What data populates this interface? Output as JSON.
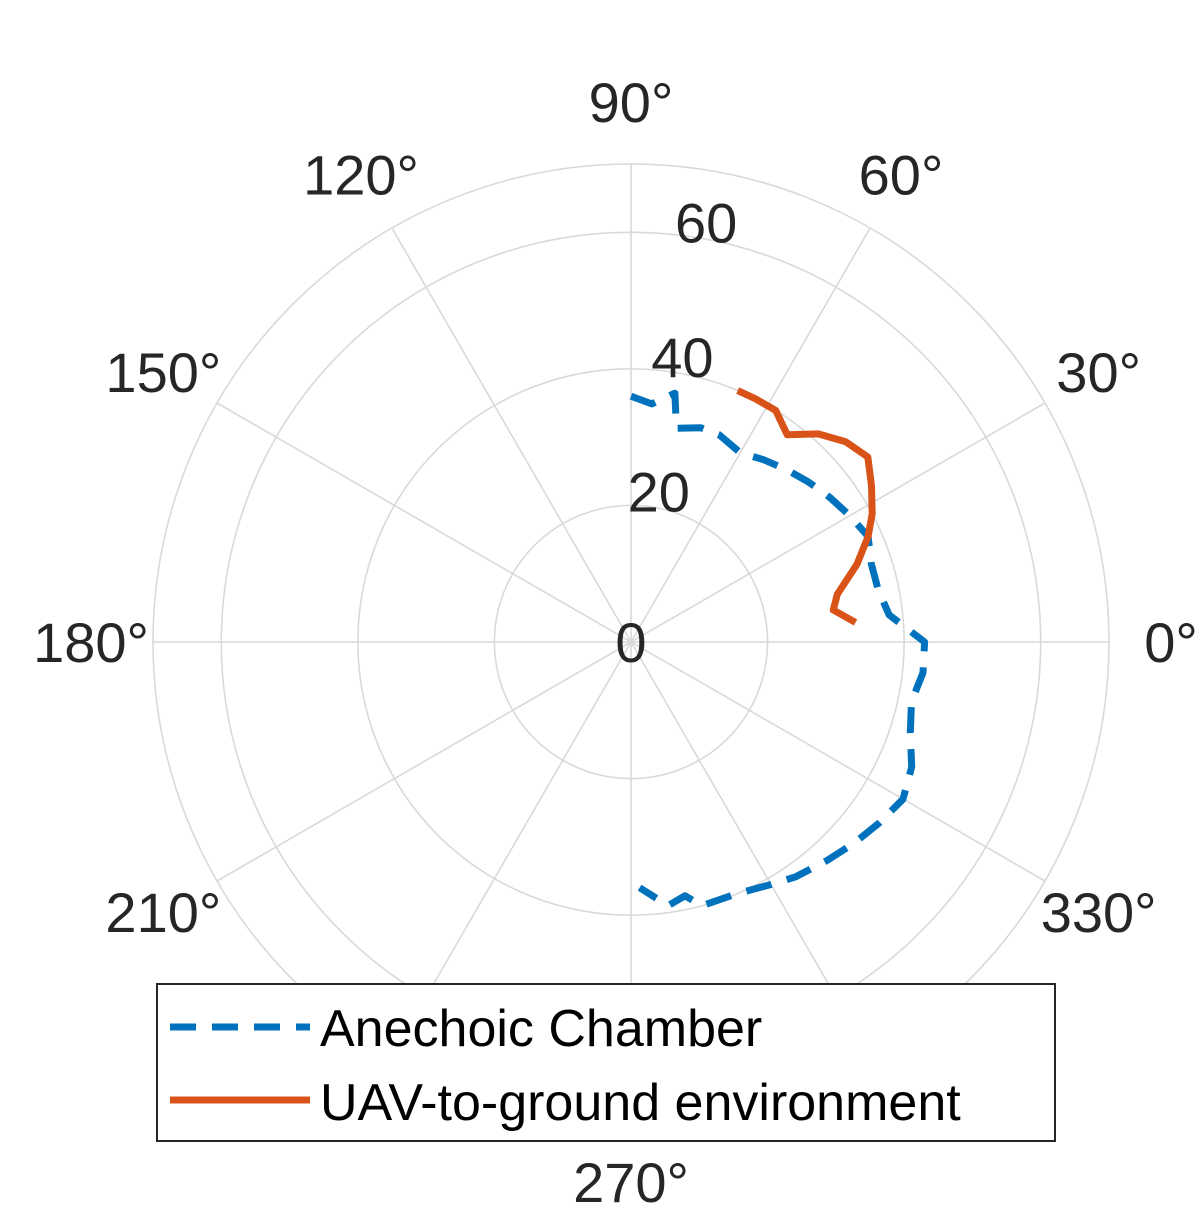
{
  "chart_data": {
    "type": "polar-line",
    "theta_unit": "degrees",
    "theta_ticks": [
      0,
      30,
      60,
      90,
      120,
      150,
      180,
      210,
      240,
      270,
      300,
      330
    ],
    "theta_tick_labels": [
      "0°",
      "30°",
      "60°",
      "90°",
      "120°",
      "150°",
      "180°",
      "210°",
      "",
      "270°",
      "",
      "330°"
    ],
    "r_ticks": [
      0,
      20,
      40,
      60
    ],
    "r_tick_labels": [
      "0",
      "20",
      "40",
      "60"
    ],
    "r_lim": [
      0,
      70
    ],
    "grid": true,
    "legend_position": "bottom",
    "series": [
      {
        "name": "Anechoic Chamber",
        "color": "#0072BD",
        "line_style": "dashed",
        "points": [
          {
            "theta": 90,
            "r": 36
          },
          {
            "theta": 85,
            "r": 35
          },
          {
            "theta": 80,
            "r": 37
          },
          {
            "theta": 78,
            "r": 32
          },
          {
            "theta": 72,
            "r": 33
          },
          {
            "theta": 67,
            "r": 33
          },
          {
            "theta": 60,
            "r": 32
          },
          {
            "theta": 54,
            "r": 33
          },
          {
            "theta": 48,
            "r": 34
          },
          {
            "theta": 42,
            "r": 35
          },
          {
            "theta": 36,
            "r": 36
          },
          {
            "theta": 30,
            "r": 37
          },
          {
            "theta": 24,
            "r": 38
          },
          {
            "theta": 18,
            "r": 37
          },
          {
            "theta": 12,
            "r": 37
          },
          {
            "theta": 6,
            "r": 38
          },
          {
            "theta": 0,
            "r": 43
          },
          {
            "theta": -6,
            "r": 43
          },
          {
            "theta": -12,
            "r": 42
          },
          {
            "theta": -18,
            "r": 43
          },
          {
            "theta": -24,
            "r": 45
          },
          {
            "theta": -30,
            "r": 46
          },
          {
            "theta": -36,
            "r": 45
          },
          {
            "theta": -42,
            "r": 44
          },
          {
            "theta": -48,
            "r": 43
          },
          {
            "theta": -55,
            "r": 42
          },
          {
            "theta": -60,
            "r": 41
          },
          {
            "theta": -67,
            "r": 40
          },
          {
            "theta": -75,
            "r": 40
          },
          {
            "theta": -78,
            "r": 38
          },
          {
            "theta": -82,
            "r": 39
          },
          {
            "theta": -88,
            "r": 36
          }
        ]
      },
      {
        "name": "UAV-to-ground environment",
        "color": "#D95319",
        "line_style": "solid",
        "points": [
          {
            "theta": 67,
            "r": 40
          },
          {
            "theta": 63,
            "r": 40
          },
          {
            "theta": 58,
            "r": 40
          },
          {
            "theta": 53,
            "r": 38
          },
          {
            "theta": 48,
            "r": 41
          },
          {
            "theta": 43,
            "r": 43
          },
          {
            "theta": 38,
            "r": 44
          },
          {
            "theta": 33,
            "r": 42
          },
          {
            "theta": 28,
            "r": 40
          },
          {
            "theta": 24,
            "r": 38
          },
          {
            "theta": 19,
            "r": 35
          },
          {
            "theta": 13,
            "r": 31
          },
          {
            "theta": 9,
            "r": 30
          },
          {
            "theta": 5,
            "r": 33
          }
        ]
      }
    ]
  },
  "legend": {
    "items": [
      {
        "label": "Anechoic Chamber",
        "color": "#0072BD",
        "line_style": "dashed"
      },
      {
        "label": "UAV-to-ground environment",
        "color": "#D95319",
        "line_style": "solid"
      }
    ]
  }
}
